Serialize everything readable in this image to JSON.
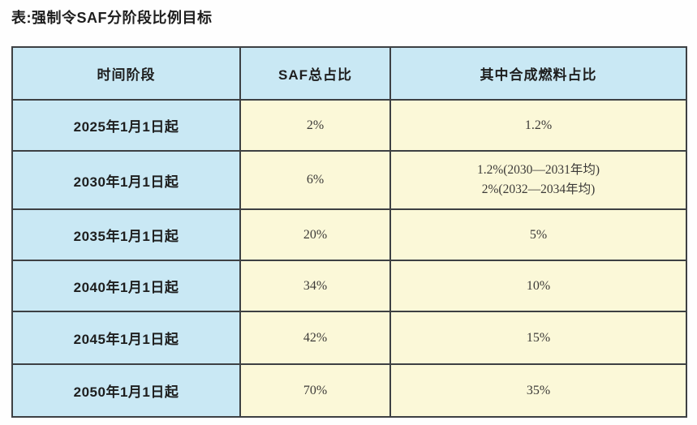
{
  "page": {
    "title": "表:强制令SAF分阶段比例目标"
  },
  "table": {
    "headers": [
      "时间阶段",
      "SAF总占比",
      "其中合成燃料占比"
    ],
    "rows": [
      {
        "period": "2025年1月1日起",
        "saf_total": "2%",
        "synthetic": [
          "1.2%"
        ]
      },
      {
        "period": "2030年1月1日起",
        "saf_total": "6%",
        "synthetic": [
          "1.2%(2030—2031年均)",
          "2%(2032—2034年均)"
        ]
      },
      {
        "period": "2035年1月1日起",
        "saf_total": "20%",
        "synthetic": [
          "5%"
        ]
      },
      {
        "period": "2040年1月1日起",
        "saf_total": "34%",
        "synthetic": [
          "10%"
        ]
      },
      {
        "period": "2045年1月1日起",
        "saf_total": "42%",
        "synthetic": [
          "15%"
        ]
      },
      {
        "period": "2050年1月1日起",
        "saf_total": "70%",
        "synthetic": [
          "35%"
        ]
      }
    ],
    "colors": {
      "header_bg": "#c9e8f4",
      "period_col_bg": "#c9e8f4",
      "value_cell_bg": "#fbf8d8",
      "border": "#3d4043",
      "title_text": "#1e1e1e",
      "value_text": "#3c3a38"
    }
  },
  "chart_data": {
    "type": "table",
    "title": "表:强制令SAF分阶段比例目标",
    "columns": [
      "时间阶段",
      "SAF总占比",
      "其中合成燃料占比"
    ],
    "rows": [
      [
        "2025年1月1日起",
        "2%",
        "1.2%"
      ],
      [
        "2030年1月1日起",
        "6%",
        "1.2%(2030—2031年均) 2%(2032—2034年均)"
      ],
      [
        "2035年1月1日起",
        "20%",
        "5%"
      ],
      [
        "2040年1月1日起",
        "34%",
        "10%"
      ],
      [
        "2045年1月1日起",
        "42%",
        "15%"
      ],
      [
        "2050年1月1日起",
        "70%",
        "35%"
      ]
    ]
  }
}
